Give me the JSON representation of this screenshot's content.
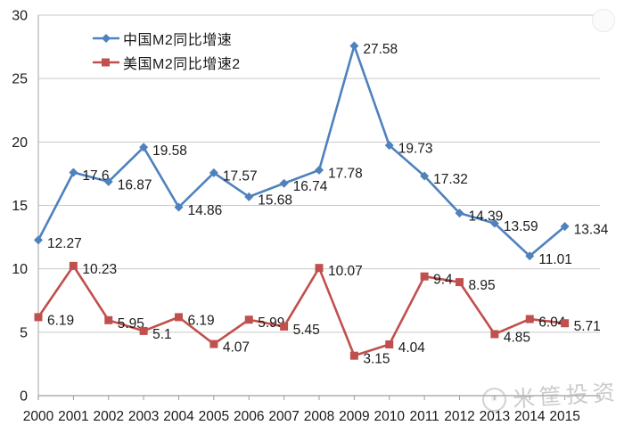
{
  "watermark": {
    "brand": "米筐投资"
  },
  "chart_data": {
    "type": "line",
    "title": "",
    "xlabel": "",
    "ylabel": "",
    "categories": [
      "2000",
      "2001",
      "2002",
      "2003",
      "2004",
      "2005",
      "2006",
      "2007",
      "2008",
      "2009",
      "2010",
      "2011",
      "2012",
      "2013",
      "2014",
      "2015"
    ],
    "series": [
      {
        "name": "中国M2同比增速",
        "color": "#4f81bd",
        "marker": "diamond",
        "values": [
          12.27,
          17.6,
          16.87,
          19.58,
          14.86,
          17.57,
          15.68,
          16.74,
          17.78,
          27.58,
          19.73,
          17.32,
          14.39,
          13.59,
          11.01,
          13.34
        ]
      },
      {
        "name": "美国M2同比增速2",
        "color": "#c0504d",
        "marker": "square",
        "values": [
          6.19,
          10.23,
          5.95,
          5.1,
          6.19,
          4.07,
          5.99,
          5.45,
          10.07,
          3.15,
          4.04,
          9.4,
          8.95,
          4.85,
          6.04,
          5.71
        ]
      }
    ],
    "ylim": [
      0,
      30
    ],
    "yticks": [
      0,
      5,
      10,
      15,
      20,
      25,
      30
    ],
    "grid": "horizontal",
    "data_labels": true,
    "legend_position": "top-left-inside",
    "colors": {
      "gridline": "#c9c9c9",
      "axis": "#9d9d9d",
      "tick_label": "#1a1a1a",
      "data_label": "#1a1a1a"
    }
  }
}
